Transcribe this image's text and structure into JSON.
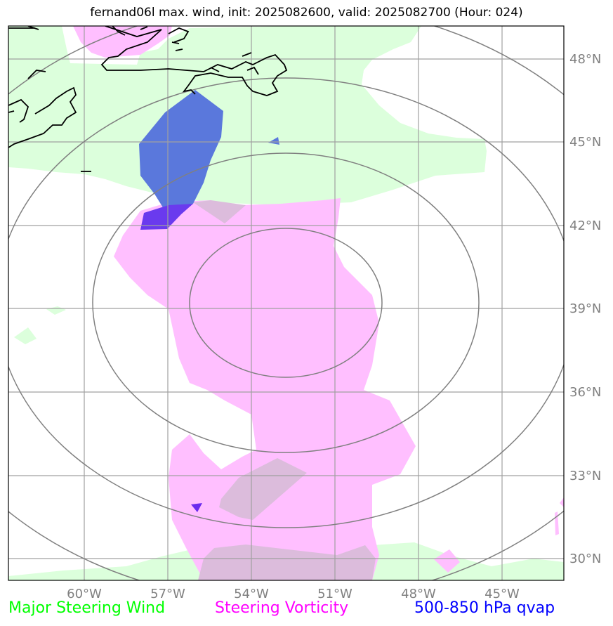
{
  "title": "fernand06l max. wind, init: 2025082600, valid: 2025082700 (Hour: 024)",
  "lon_ticks": [
    "60°W",
    "57°W",
    "54°W",
    "51°W",
    "48°W",
    "45°W"
  ],
  "lat_ticks": [
    "48°N",
    "45°N",
    "42°N",
    "39°N",
    "36°N",
    "33°N",
    "30°N"
  ],
  "legend": {
    "wind": "Major Steering Wind",
    "vorticity": "Steering Vorticity",
    "qvap": "500-850 hPa qvap"
  },
  "colors": {
    "wind": "#00ff00",
    "vorticity": "#ff00ff",
    "qvap": "#0000ff",
    "wind_fill": "#dcffdc",
    "vorticity_fill": "#ffbfff",
    "qvap_fill": "#5a78dc",
    "grid": "#a0a0a0",
    "range_ring": "#808080",
    "tick_text": "#808080"
  }
}
